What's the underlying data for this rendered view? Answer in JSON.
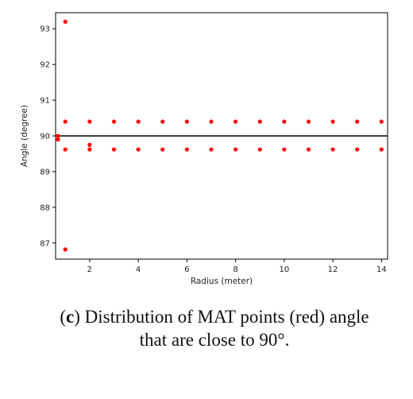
{
  "chart_data": {
    "type": "scatter",
    "title": "",
    "xlabel": "Radius (meter)",
    "ylabel": "Angle (degree)",
    "xlim": [
      0.6,
      14.25
    ],
    "ylim": [
      86.55,
      93.45
    ],
    "xticks": [
      2,
      4,
      6,
      8,
      10,
      12,
      14
    ],
    "yticks": [
      87,
      88,
      89,
      90,
      91,
      92,
      93
    ],
    "reference_line_y": 90,
    "grid": false,
    "point_color": "#ff0000",
    "line_color": "#000000",
    "points": [
      {
        "x": 0.7,
        "y": 90.0
      },
      {
        "x": 0.7,
        "y": 89.9
      },
      {
        "x": 1,
        "y": 93.2
      },
      {
        "x": 1,
        "y": 90.4
      },
      {
        "x": 1,
        "y": 89.62
      },
      {
        "x": 1,
        "y": 86.82
      },
      {
        "x": 2,
        "y": 90.4
      },
      {
        "x": 2,
        "y": 89.75
      },
      {
        "x": 2,
        "y": 89.62
      },
      {
        "x": 3,
        "y": 90.4
      },
      {
        "x": 3,
        "y": 89.62
      },
      {
        "x": 4,
        "y": 90.4
      },
      {
        "x": 4,
        "y": 89.62
      },
      {
        "x": 5,
        "y": 90.4
      },
      {
        "x": 5,
        "y": 89.62
      },
      {
        "x": 6,
        "y": 90.4
      },
      {
        "x": 6,
        "y": 89.62
      },
      {
        "x": 7,
        "y": 90.4
      },
      {
        "x": 7,
        "y": 89.62
      },
      {
        "x": 8,
        "y": 90.4
      },
      {
        "x": 8,
        "y": 89.62
      },
      {
        "x": 9,
        "y": 90.4
      },
      {
        "x": 9,
        "y": 89.62
      },
      {
        "x": 10,
        "y": 90.4
      },
      {
        "x": 10,
        "y": 89.62
      },
      {
        "x": 11,
        "y": 90.4
      },
      {
        "x": 11,
        "y": 89.62
      },
      {
        "x": 12,
        "y": 90.4
      },
      {
        "x": 12,
        "y": 89.62
      },
      {
        "x": 13,
        "y": 90.4
      },
      {
        "x": 13,
        "y": 89.62
      },
      {
        "x": 14,
        "y": 90.4
      },
      {
        "x": 14,
        "y": 89.62
      }
    ]
  },
  "caption": {
    "label": "c",
    "text": ") Distribution of MAT points (red) angle that are close to 90°."
  }
}
